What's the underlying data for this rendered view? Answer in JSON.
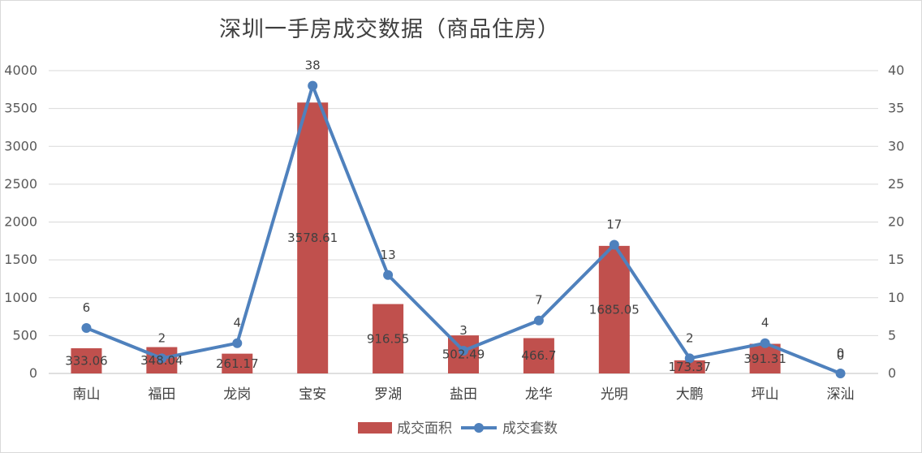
{
  "chart_data": {
    "type": "bar",
    "title": "深圳一手房成交数据（商品住房）",
    "categories": [
      "南山",
      "福田",
      "龙岗",
      "宝安",
      "罗湖",
      "盐田",
      "龙华",
      "光明",
      "大鹏",
      "坪山",
      "深汕"
    ],
    "series": [
      {
        "name": "成交面积",
        "type": "bar",
        "axis": "left",
        "color": "#C0504D",
        "values": [
          333.06,
          348.04,
          261.17,
          3578.61,
          916.55,
          502.49,
          466.7,
          1685.05,
          173.37,
          391.31,
          0
        ],
        "labels": [
          "333.06",
          "348.04",
          "261.17",
          "3578.61",
          "916.55",
          "502.49",
          "466.7",
          "1685.05",
          "173.37",
          "391.31",
          "0"
        ]
      },
      {
        "name": "成交套数",
        "type": "line",
        "axis": "right",
        "color": "#4F81BD",
        "values": [
          6,
          2,
          4,
          38,
          13,
          3,
          7,
          17,
          2,
          4,
          0
        ],
        "labels": [
          "6",
          "2",
          "4",
          "38",
          "13",
          "3",
          "7",
          "17",
          "2",
          "4",
          "0"
        ]
      }
    ],
    "y_left": {
      "min": 0,
      "max": 4000,
      "ticks": [
        "0",
        "500",
        "1000",
        "1500",
        "2000",
        "2500",
        "3000",
        "3500",
        "4000"
      ]
    },
    "y_right": {
      "min": 0,
      "max": 40,
      "ticks": [
        "0",
        "5",
        "10",
        "15",
        "20",
        "25",
        "30",
        "35",
        "40"
      ]
    },
    "grid": true,
    "legend": "bottom"
  }
}
